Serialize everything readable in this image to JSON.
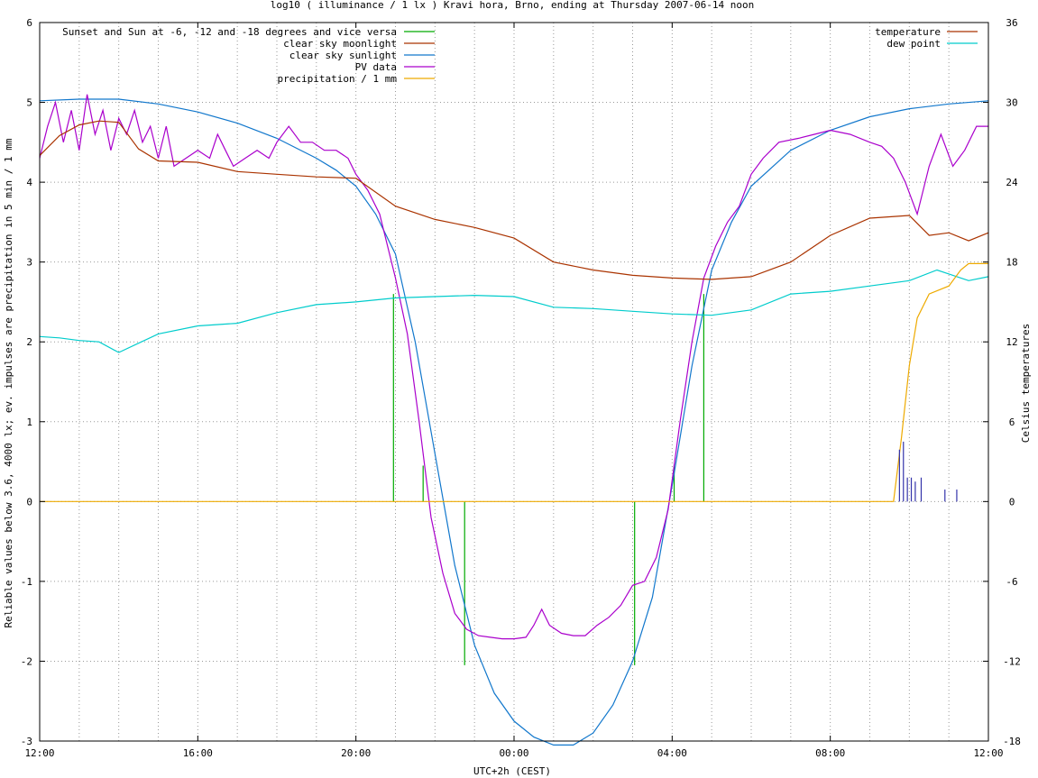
{
  "chart_data": {
    "type": "line",
    "title": "log10 ( illuminance / 1 lx ) Kravi hora, Brno, ending at Thursday 2007-06-14 noon",
    "xlabel": "UTC+2h (CEST)",
    "ylabel": "Reliable values below 3.6, 4000 lx; ev. impulses are precipitation in 5 min / 1 mm",
    "y2label": "Celsius temperatures",
    "x_unit": "hours since 12:00 (display)",
    "xlim": [
      0,
      24
    ],
    "ylim": [
      -3,
      6
    ],
    "y2lim": [
      -18,
      36
    ],
    "grid": true,
    "x_ticks": [
      {
        "v": 0,
        "label": "12:00"
      },
      {
        "v": 4,
        "label": "16:00"
      },
      {
        "v": 8,
        "label": "20:00"
      },
      {
        "v": 12,
        "label": "00:00"
      },
      {
        "v": 16,
        "label": "04:00"
      },
      {
        "v": 20,
        "label": "08:00"
      },
      {
        "v": 24,
        "label": "12:00"
      }
    ],
    "y_ticks": [
      {
        "v": -3,
        "label": "-3"
      },
      {
        "v": -2,
        "label": "-2"
      },
      {
        "v": -1,
        "label": "-1"
      },
      {
        "v": 0,
        "label": "0"
      },
      {
        "v": 1,
        "label": "1"
      },
      {
        "v": 2,
        "label": "2"
      },
      {
        "v": 3,
        "label": "3"
      },
      {
        "v": 4,
        "label": "4"
      },
      {
        "v": 5,
        "label": "5"
      },
      {
        "v": 6,
        "label": "6"
      }
    ],
    "y2_ticks": [
      {
        "v": -18,
        "label": "-18"
      },
      {
        "v": -12,
        "label": "-12"
      },
      {
        "v": -6,
        "label": "-6"
      },
      {
        "v": 0,
        "label": "0"
      },
      {
        "v": 6,
        "label": "6"
      },
      {
        "v": 12,
        "label": "12"
      },
      {
        "v": 18,
        "label": "18"
      },
      {
        "v": 24,
        "label": "24"
      },
      {
        "v": 30,
        "label": "30"
      },
      {
        "v": 36,
        "label": "36"
      }
    ],
    "legend_left": [
      {
        "label": "Sunset and Sun at -6, -12 and -18 degrees and vice versa",
        "color": "#00aa00"
      },
      {
        "label": "clear sky moonlight",
        "color": "#aa3300"
      },
      {
        "label": "clear sky sunlight",
        "color": "#1177cc"
      },
      {
        "label": "PV data",
        "color": "#aa00cc"
      },
      {
        "label": "precipitation / 1 mm",
        "color": "#eeaa00"
      }
    ],
    "legend_right": [
      {
        "label": "temperature",
        "color": "#aa3300"
      },
      {
        "label": "dew point",
        "color": "#00cccc"
      }
    ],
    "series": [
      {
        "name": "Sunset and Sun at -6, -12 and -18 degrees and vice versa",
        "color": "#00aa00",
        "kind": "impulse",
        "points": [
          [
            8.95,
            2.6
          ],
          [
            9.7,
            0.45
          ],
          [
            10.75,
            -2.05
          ],
          [
            15.05,
            -2.05
          ],
          [
            16.05,
            0.45
          ],
          [
            16.8,
            2.6
          ]
        ]
      },
      {
        "name": "clear sky sunlight",
        "color": "#1177cc",
        "axis": "y",
        "points": [
          [
            0,
            5.02
          ],
          [
            1,
            5.04
          ],
          [
            2,
            5.04
          ],
          [
            3,
            4.98
          ],
          [
            4,
            4.88
          ],
          [
            5,
            4.74
          ],
          [
            6,
            4.55
          ],
          [
            7,
            4.3
          ],
          [
            7.5,
            4.15
          ],
          [
            8,
            3.95
          ],
          [
            8.5,
            3.6
          ],
          [
            9,
            3.1
          ],
          [
            9.5,
            2.0
          ],
          [
            10,
            0.6
          ],
          [
            10.5,
            -0.8
          ],
          [
            11,
            -1.8
          ],
          [
            11.5,
            -2.4
          ],
          [
            12,
            -2.75
          ],
          [
            12.5,
            -2.95
          ],
          [
            13,
            -3.05
          ],
          [
            13.5,
            -3.05
          ],
          [
            14,
            -2.9
          ],
          [
            14.5,
            -2.55
          ],
          [
            15,
            -2.0
          ],
          [
            15.5,
            -1.2
          ],
          [
            16,
            0.2
          ],
          [
            16.5,
            1.7
          ],
          [
            17,
            2.9
          ],
          [
            17.5,
            3.5
          ],
          [
            18,
            3.95
          ],
          [
            19,
            4.4
          ],
          [
            20,
            4.65
          ],
          [
            21,
            4.82
          ],
          [
            22,
            4.92
          ],
          [
            23,
            4.98
          ],
          [
            24,
            5.02
          ]
        ]
      },
      {
        "name": "PV data",
        "color": "#aa00cc",
        "axis": "y",
        "points": [
          [
            0,
            4.3
          ],
          [
            0.2,
            4.7
          ],
          [
            0.4,
            5.0
          ],
          [
            0.6,
            4.5
          ],
          [
            0.8,
            4.9
          ],
          [
            1.0,
            4.4
          ],
          [
            1.2,
            5.1
          ],
          [
            1.4,
            4.6
          ],
          [
            1.6,
            4.9
          ],
          [
            1.8,
            4.4
          ],
          [
            2.0,
            4.8
          ],
          [
            2.2,
            4.6
          ],
          [
            2.4,
            4.9
          ],
          [
            2.6,
            4.5
          ],
          [
            2.8,
            4.7
          ],
          [
            3.0,
            4.3
          ],
          [
            3.2,
            4.7
          ],
          [
            3.4,
            4.2
          ],
          [
            3.7,
            4.3
          ],
          [
            4.0,
            4.4
          ],
          [
            4.3,
            4.3
          ],
          [
            4.5,
            4.6
          ],
          [
            4.7,
            4.4
          ],
          [
            4.9,
            4.2
          ],
          [
            5.2,
            4.3
          ],
          [
            5.5,
            4.4
          ],
          [
            5.8,
            4.3
          ],
          [
            6.0,
            4.5
          ],
          [
            6.3,
            4.7
          ],
          [
            6.6,
            4.5
          ],
          [
            6.9,
            4.5
          ],
          [
            7.2,
            4.4
          ],
          [
            7.5,
            4.4
          ],
          [
            7.8,
            4.3
          ],
          [
            8.0,
            4.1
          ],
          [
            8.3,
            3.9
          ],
          [
            8.6,
            3.6
          ],
          [
            9.0,
            2.8
          ],
          [
            9.3,
            2.1
          ],
          [
            9.6,
            1.0
          ],
          [
            9.9,
            -0.2
          ],
          [
            10.2,
            -0.9
          ],
          [
            10.5,
            -1.4
          ],
          [
            10.8,
            -1.6
          ],
          [
            11.1,
            -1.68
          ],
          [
            11.4,
            -1.7
          ],
          [
            11.7,
            -1.72
          ],
          [
            12.0,
            -1.72
          ],
          [
            12.3,
            -1.7
          ],
          [
            12.5,
            -1.55
          ],
          [
            12.7,
            -1.35
          ],
          [
            12.9,
            -1.55
          ],
          [
            13.2,
            -1.65
          ],
          [
            13.5,
            -1.68
          ],
          [
            13.8,
            -1.68
          ],
          [
            14.1,
            -1.55
          ],
          [
            14.4,
            -1.45
          ],
          [
            14.7,
            -1.3
          ],
          [
            15.0,
            -1.05
          ],
          [
            15.3,
            -1.0
          ],
          [
            15.6,
            -0.7
          ],
          [
            15.9,
            -0.1
          ],
          [
            16.2,
            1.0
          ],
          [
            16.5,
            2.0
          ],
          [
            16.8,
            2.8
          ],
          [
            17.1,
            3.2
          ],
          [
            17.4,
            3.5
          ],
          [
            17.7,
            3.7
          ],
          [
            18.0,
            4.1
          ],
          [
            18.3,
            4.3
          ],
          [
            18.7,
            4.5
          ],
          [
            19.2,
            4.55
          ],
          [
            19.6,
            4.6
          ],
          [
            20.0,
            4.65
          ],
          [
            20.5,
            4.6
          ],
          [
            21.0,
            4.5
          ],
          [
            21.3,
            4.45
          ],
          [
            21.6,
            4.3
          ],
          [
            21.9,
            4.0
          ],
          [
            22.2,
            3.6
          ],
          [
            22.5,
            4.2
          ],
          [
            22.8,
            4.6
          ],
          [
            23.1,
            4.2
          ],
          [
            23.4,
            4.4
          ],
          [
            23.7,
            4.7
          ],
          [
            24.0,
            4.7
          ]
        ]
      },
      {
        "name": "temperature",
        "color": "#aa3300",
        "axis": "y2",
        "points": [
          [
            0,
            26.0
          ],
          [
            0.5,
            27.5
          ],
          [
            1,
            28.3
          ],
          [
            1.5,
            28.6
          ],
          [
            2,
            28.5
          ],
          [
            2.5,
            26.5
          ],
          [
            3,
            25.6
          ],
          [
            4,
            25.5
          ],
          [
            5,
            24.8
          ],
          [
            6,
            24.6
          ],
          [
            7,
            24.4
          ],
          [
            8,
            24.3
          ],
          [
            9,
            22.2
          ],
          [
            10,
            21.2
          ],
          [
            11,
            20.6
          ],
          [
            12,
            19.8
          ],
          [
            13,
            18.0
          ],
          [
            14,
            17.4
          ],
          [
            15,
            17.0
          ],
          [
            16,
            16.8
          ],
          [
            17,
            16.7
          ],
          [
            18,
            16.9
          ],
          [
            19,
            18.0
          ],
          [
            20,
            20.0
          ],
          [
            21,
            21.3
          ],
          [
            22,
            21.5
          ],
          [
            22.5,
            20.0
          ],
          [
            23,
            20.2
          ],
          [
            23.5,
            19.6
          ],
          [
            24,
            20.2
          ]
        ]
      },
      {
        "name": "dew point",
        "color": "#00cccc",
        "axis": "y2",
        "points": [
          [
            0,
            12.4
          ],
          [
            0.5,
            12.3
          ],
          [
            1,
            12.1
          ],
          [
            1.5,
            12.0
          ],
          [
            2,
            11.2
          ],
          [
            3,
            12.6
          ],
          [
            4,
            13.2
          ],
          [
            5,
            13.4
          ],
          [
            6,
            14.2
          ],
          [
            7,
            14.8
          ],
          [
            8,
            15.0
          ],
          [
            9,
            15.3
          ],
          [
            10,
            15.4
          ],
          [
            11,
            15.5
          ],
          [
            12,
            15.4
          ],
          [
            13,
            14.6
          ],
          [
            14,
            14.5
          ],
          [
            15,
            14.3
          ],
          [
            16,
            14.1
          ],
          [
            17,
            14.0
          ],
          [
            18,
            14.4
          ],
          [
            19,
            15.6
          ],
          [
            20,
            15.8
          ],
          [
            21,
            16.2
          ],
          [
            22,
            16.6
          ],
          [
            22.7,
            17.4
          ],
          [
            23,
            17.1
          ],
          [
            23.5,
            16.6
          ],
          [
            24,
            16.9
          ]
        ]
      },
      {
        "name": "precipitation / 1 mm",
        "color": "#eeaa00",
        "axis": "y",
        "points": [
          [
            0,
            0
          ],
          [
            21.6,
            0
          ],
          [
            21.8,
            0.8
          ],
          [
            22.0,
            1.7
          ],
          [
            22.2,
            2.3
          ],
          [
            22.5,
            2.6
          ],
          [
            23.0,
            2.7
          ],
          [
            23.3,
            2.9
          ],
          [
            23.5,
            2.98
          ],
          [
            24,
            2.98
          ]
        ]
      },
      {
        "name": "precipitation impulses",
        "color": "#3333aa",
        "kind": "impulse",
        "points": [
          [
            21.75,
            0.65
          ],
          [
            21.85,
            0.75
          ],
          [
            21.95,
            0.3
          ],
          [
            22.05,
            0.3
          ],
          [
            22.15,
            0.25
          ],
          [
            22.3,
            0.3
          ],
          [
            22.9,
            0.15
          ],
          [
            23.2,
            0.15
          ]
        ]
      }
    ]
  }
}
